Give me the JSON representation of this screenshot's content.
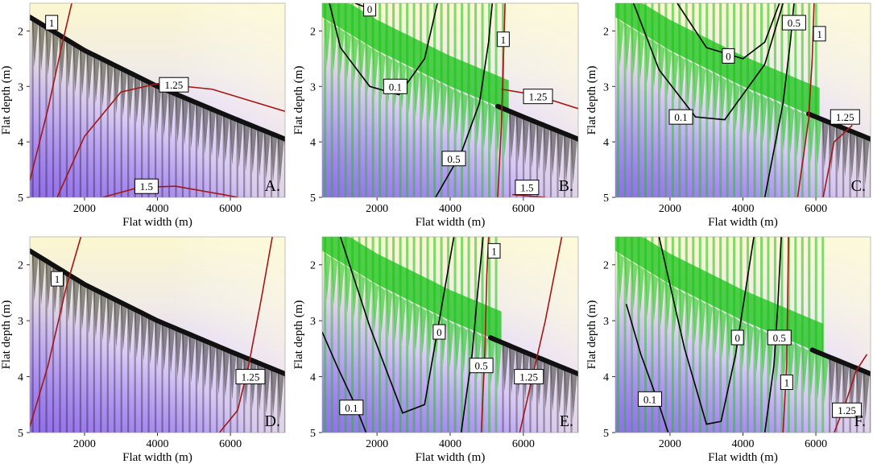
{
  "figure": {
    "colors": {
      "heat_top": "#fbf7cf",
      "heat_bottom_left": "#9370ee",
      "heat_mid": "#e6dcf8",
      "dots_dark": "#111111",
      "dots_green": "#17c217",
      "contour_red": "#a51616",
      "contour_black": "#000000"
    }
  },
  "chart_data": [
    {
      "panel": "A.",
      "type": "scatter",
      "xlabel": "Flat width (m)",
      "ylabel": "Flat depth (m)",
      "xlim": [
        500,
        7500
      ],
      "ylim": [
        5,
        1.5
      ],
      "xticks": [
        "2000",
        "4000",
        "6000"
      ],
      "yticks": [
        "2",
        "3",
        "4",
        "5"
      ],
      "dots": "dark",
      "trend": [
        [
          500,
          1.75
        ],
        [
          2000,
          2.35
        ],
        [
          4000,
          3.0
        ],
        [
          6000,
          3.55
        ],
        [
          7500,
          3.95
        ]
      ],
      "contours": [
        {
          "label": "1",
          "color": "red",
          "points": [
            [
              500,
              4.7
            ],
            [
              1000,
              3.4
            ],
            [
              1400,
              2.2
            ],
            [
              1650,
              1.5
            ]
          ],
          "label_at": [
            1100,
            1.85
          ]
        },
        {
          "label": "1.25",
          "color": "red",
          "points": [
            [
              1250,
              5.0
            ],
            [
              2000,
              3.9
            ],
            [
              3000,
              3.1
            ],
            [
              4000,
              2.95
            ],
            [
              5500,
              3.05
            ],
            [
              7500,
              3.45
            ]
          ],
          "label_at": [
            4450,
            2.97
          ]
        },
        {
          "label": "1.5",
          "color": "red",
          "points": [
            [
              2500,
              5.0
            ],
            [
              3500,
              4.82
            ],
            [
              4500,
              4.8
            ],
            [
              5800,
              4.95
            ],
            [
              6200,
              5.0
            ]
          ],
          "label_at": [
            3700,
            4.8
          ]
        }
      ]
    },
    {
      "panel": "B.",
      "type": "scatter",
      "xlabel": "Flat width (m)",
      "ylabel": "Flat depth (m)",
      "xlim": [
        500,
        7500
      ],
      "ylim": [
        5,
        1.5
      ],
      "xticks": [
        "2000",
        "4000",
        "6000"
      ],
      "yticks": [
        "2",
        "3",
        "4",
        "5"
      ],
      "dots": "green",
      "trend": [
        [
          500,
          1.75
        ],
        [
          2000,
          2.35
        ],
        [
          4000,
          3.0
        ],
        [
          6000,
          3.55
        ],
        [
          7500,
          3.95
        ]
      ],
      "green_boundary": 5600,
      "contours": [
        {
          "label": "0",
          "color": "black",
          "points": [
            [
              1400,
              1.5
            ],
            [
              1800,
              1.6
            ]
          ],
          "label_at": [
            1800,
            1.6
          ]
        },
        {
          "label": "0.1",
          "color": "black",
          "points": [
            [
              700,
              1.5
            ],
            [
              1000,
              2.3
            ],
            [
              1800,
              3.0
            ],
            [
              2600,
              3.15
            ],
            [
              3300,
              2.5
            ],
            [
              3650,
              1.5
            ]
          ],
          "label_at": [
            2500,
            3.0
          ]
        },
        {
          "label": "0.5",
          "color": "black",
          "points": [
            [
              3600,
              5.0
            ],
            [
              4300,
              4.2
            ],
            [
              4800,
              3.3
            ],
            [
              5050,
              2.2
            ],
            [
              5150,
              1.5
            ]
          ],
          "label_at": [
            4100,
            4.3
          ]
        },
        {
          "label": "1",
          "color": "red",
          "points": [
            [
              5300,
              5.0
            ],
            [
              5400,
              3.7
            ],
            [
              5450,
              2.6
            ],
            [
              5500,
              1.5
            ]
          ],
          "label_at": [
            5450,
            2.15
          ]
        },
        {
          "label": "1.25",
          "color": "red",
          "points": [
            [
              5400,
              3.05
            ],
            [
              6300,
              3.15
            ],
            [
              7500,
              3.4
            ]
          ],
          "label_at": [
            6400,
            3.18
          ]
        },
        {
          "label": "1.5",
          "color": "red",
          "points": [
            [
              5700,
              4.95
            ],
            [
              6600,
              5.0
            ]
          ],
          "label_at": [
            6100,
            4.82
          ]
        }
      ]
    },
    {
      "panel": "C.",
      "type": "scatter",
      "xlabel": "Flat width (m)",
      "ylabel": "Flat depth (m)",
      "xlim": [
        500,
        7500
      ],
      "ylim": [
        5,
        1.5
      ],
      "xticks": [
        "2000",
        "4000",
        "6000"
      ],
      "yticks": [
        "2",
        "3",
        "4",
        "5"
      ],
      "dots": "green",
      "trend": [
        [
          500,
          1.75
        ],
        [
          2000,
          2.35
        ],
        [
          4000,
          3.0
        ],
        [
          6000,
          3.55
        ],
        [
          7500,
          3.95
        ]
      ],
      "green_boundary": 6100,
      "contours": [
        {
          "label": "0",
          "color": "black",
          "points": [
            [
              2200,
              1.5
            ],
            [
              3000,
              2.3
            ],
            [
              4000,
              2.5
            ],
            [
              4600,
              2.2
            ],
            [
              5000,
              1.5
            ]
          ],
          "label_at": [
            3600,
            2.45
          ]
        },
        {
          "label": "0.1",
          "color": "black",
          "points": [
            [
              1000,
              1.5
            ],
            [
              1700,
              2.7
            ],
            [
              2700,
              3.55
            ],
            [
              3500,
              3.6
            ],
            [
              4600,
              2.6
            ],
            [
              5100,
              1.5
            ]
          ],
          "label_at": [
            2300,
            3.55
          ]
        },
        {
          "label": "0.5",
          "color": "black",
          "points": [
            [
              4600,
              5.0
            ],
            [
              5100,
              3.3
            ],
            [
              5300,
              2.2
            ],
            [
              5400,
              1.5
            ]
          ],
          "label_at": [
            5400,
            1.85
          ]
        },
        {
          "label": "1",
          "color": "red",
          "points": [
            [
              5500,
              5.0
            ],
            [
              5800,
              3.6
            ],
            [
              5900,
              2.5
            ],
            [
              5950,
              1.5
            ]
          ],
          "label_at": [
            6100,
            2.05
          ]
        },
        {
          "label": "1.25",
          "color": "red",
          "points": [
            [
              6200,
              5.0
            ],
            [
              6500,
              4.0
            ],
            [
              7000,
              3.7
            ]
          ],
          "label_at": [
            6800,
            3.55
          ]
        }
      ]
    },
    {
      "panel": "D.",
      "type": "scatter",
      "xlabel": "Flat width (m)",
      "ylabel": "Flat depth (m)",
      "xlim": [
        500,
        7500
      ],
      "ylim": [
        5,
        1.5
      ],
      "xticks": [
        "2000",
        "4000",
        "6000"
      ],
      "yticks": [
        "2",
        "3",
        "4",
        "5"
      ],
      "dots": "dark",
      "trend": [
        [
          500,
          1.75
        ],
        [
          2000,
          2.35
        ],
        [
          4000,
          3.0
        ],
        [
          6000,
          3.55
        ],
        [
          7500,
          3.95
        ]
      ],
      "contours": [
        {
          "label": "1",
          "color": "red",
          "points": [
            [
              500,
              4.9
            ],
            [
              1000,
              3.8
            ],
            [
              1500,
              2.4
            ],
            [
              1900,
              1.5
            ]
          ],
          "label_at": [
            1250,
            2.25
          ]
        },
        {
          "label": "1.25",
          "color": "red",
          "points": [
            [
              5700,
              5.0
            ],
            [
              6200,
              4.6
            ],
            [
              6500,
              3.8
            ],
            [
              6850,
              2.6
            ],
            [
              7150,
              1.5
            ]
          ],
          "label_at": [
            6550,
            4.0
          ]
        }
      ]
    },
    {
      "panel": "E.",
      "type": "scatter",
      "xlabel": "Flat width (m)",
      "ylabel": "Flat depth (m)",
      "xlim": [
        500,
        7500
      ],
      "ylim": [
        5,
        1.5
      ],
      "xticks": [
        "2000",
        "4000",
        "6000"
      ],
      "yticks": [
        "2",
        "3",
        "4",
        "5"
      ],
      "dots": "green",
      "trend": [
        [
          500,
          1.75
        ],
        [
          2000,
          2.35
        ],
        [
          4000,
          3.0
        ],
        [
          6000,
          3.55
        ],
        [
          7500,
          3.95
        ]
      ],
      "green_boundary": 5400,
      "contours": [
        {
          "label": "0",
          "color": "black",
          "points": [
            [
              1000,
              1.5
            ],
            [
              1800,
              3.1
            ],
            [
              2700,
              4.65
            ],
            [
              3300,
              4.5
            ],
            [
              3700,
              3.0
            ],
            [
              4100,
              1.5
            ]
          ],
          "label_at": [
            3700,
            3.2
          ]
        },
        {
          "label": "0.1",
          "color": "black",
          "points": [
            [
              500,
              3.2
            ],
            [
              900,
              3.8
            ],
            [
              1400,
              4.5
            ],
            [
              1700,
              5.0
            ]
          ],
          "label_at": [
            1300,
            4.55
          ]
        },
        {
          "label": "0.5",
          "color": "black",
          "points": [
            [
              4300,
              5.0
            ],
            [
              4600,
              3.6
            ],
            [
              4750,
              2.5
            ],
            [
              4900,
              1.5
            ]
          ],
          "label_at": [
            4850,
            3.8
          ]
        },
        {
          "label": "1",
          "color": "red",
          "points": [
            [
              4850,
              5.0
            ],
            [
              4950,
              3.5
            ],
            [
              5000,
              2.2
            ],
            [
              5050,
              1.5
            ]
          ],
          "label_at": [
            5200,
            1.75
          ]
        },
        {
          "label": "1.25",
          "color": "red",
          "points": [
            [
              5900,
              5.0
            ],
            [
              6250,
              4.0
            ],
            [
              6600,
              3.0
            ],
            [
              7050,
              1.5
            ]
          ],
          "label_at": [
            6150,
            4.0
          ]
        }
      ]
    },
    {
      "panel": "F.",
      "type": "scatter",
      "xlabel": "Flat width (m)",
      "ylabel": "Flat depth (m)",
      "xlim": [
        500,
        7500
      ],
      "ylim": [
        5,
        1.5
      ],
      "xticks": [
        "2000",
        "4000",
        "6000"
      ],
      "yticks": [
        "2",
        "3",
        "4",
        "5"
      ],
      "dots": "green",
      "trend": [
        [
          500,
          1.75
        ],
        [
          2000,
          2.35
        ],
        [
          4000,
          3.0
        ],
        [
          6000,
          3.55
        ],
        [
          7500,
          3.95
        ]
      ],
      "green_boundary": 6200,
      "contours": [
        {
          "label": "0",
          "color": "black",
          "points": [
            [
              1700,
              1.5
            ],
            [
              2400,
              3.5
            ],
            [
              3000,
              4.85
            ],
            [
              3400,
              4.8
            ],
            [
              3800,
              3.6
            ],
            [
              4300,
              1.5
            ]
          ],
          "label_at": [
            3850,
            3.3
          ]
        },
        {
          "label": "0.1",
          "color": "black",
          "points": [
            [
              800,
              2.7
            ],
            [
              1200,
              3.6
            ],
            [
              1700,
              4.5
            ],
            [
              1950,
              5.0
            ]
          ],
          "label_at": [
            1450,
            4.4
          ]
        },
        {
          "label": "0.5",
          "color": "black",
          "points": [
            [
              4600,
              5.0
            ],
            [
              4850,
              3.8
            ],
            [
              4950,
              2.8
            ],
            [
              5050,
              1.5
            ]
          ],
          "label_at": [
            5000,
            3.3
          ]
        },
        {
          "label": "1",
          "color": "red",
          "points": [
            [
              5100,
              5.0
            ],
            [
              5200,
              3.8
            ],
            [
              5250,
              1.5
            ]
          ],
          "label_at": [
            5200,
            4.1
          ]
        },
        {
          "label": "1.25",
          "color": "red",
          "points": [
            [
              6500,
              5.0
            ],
            [
              6800,
              4.5
            ],
            [
              7100,
              3.9
            ],
            [
              7400,
              3.6
            ]
          ],
          "label_at": [
            6850,
            4.6
          ]
        }
      ]
    }
  ]
}
